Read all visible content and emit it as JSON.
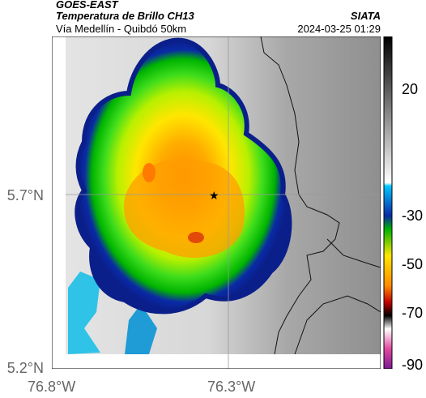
{
  "header": {
    "satellite": "GOES-EAST",
    "product": "Temperatura de Brillo CH13",
    "region": "Vía Medellín - Quibdó 50km",
    "organization": "SIATA",
    "timestamp": "2024-03-25 01:29"
  },
  "axes": {
    "lat_labels": [
      "5.7°N",
      "5.2°N"
    ],
    "lon_labels": [
      "76.8°W",
      "76.3°W"
    ]
  },
  "colorbar": {
    "ticks": [
      "20",
      "-30",
      "-50",
      "-70",
      "-90"
    ]
  },
  "map": {
    "marker_icon": "star-icon"
  }
}
